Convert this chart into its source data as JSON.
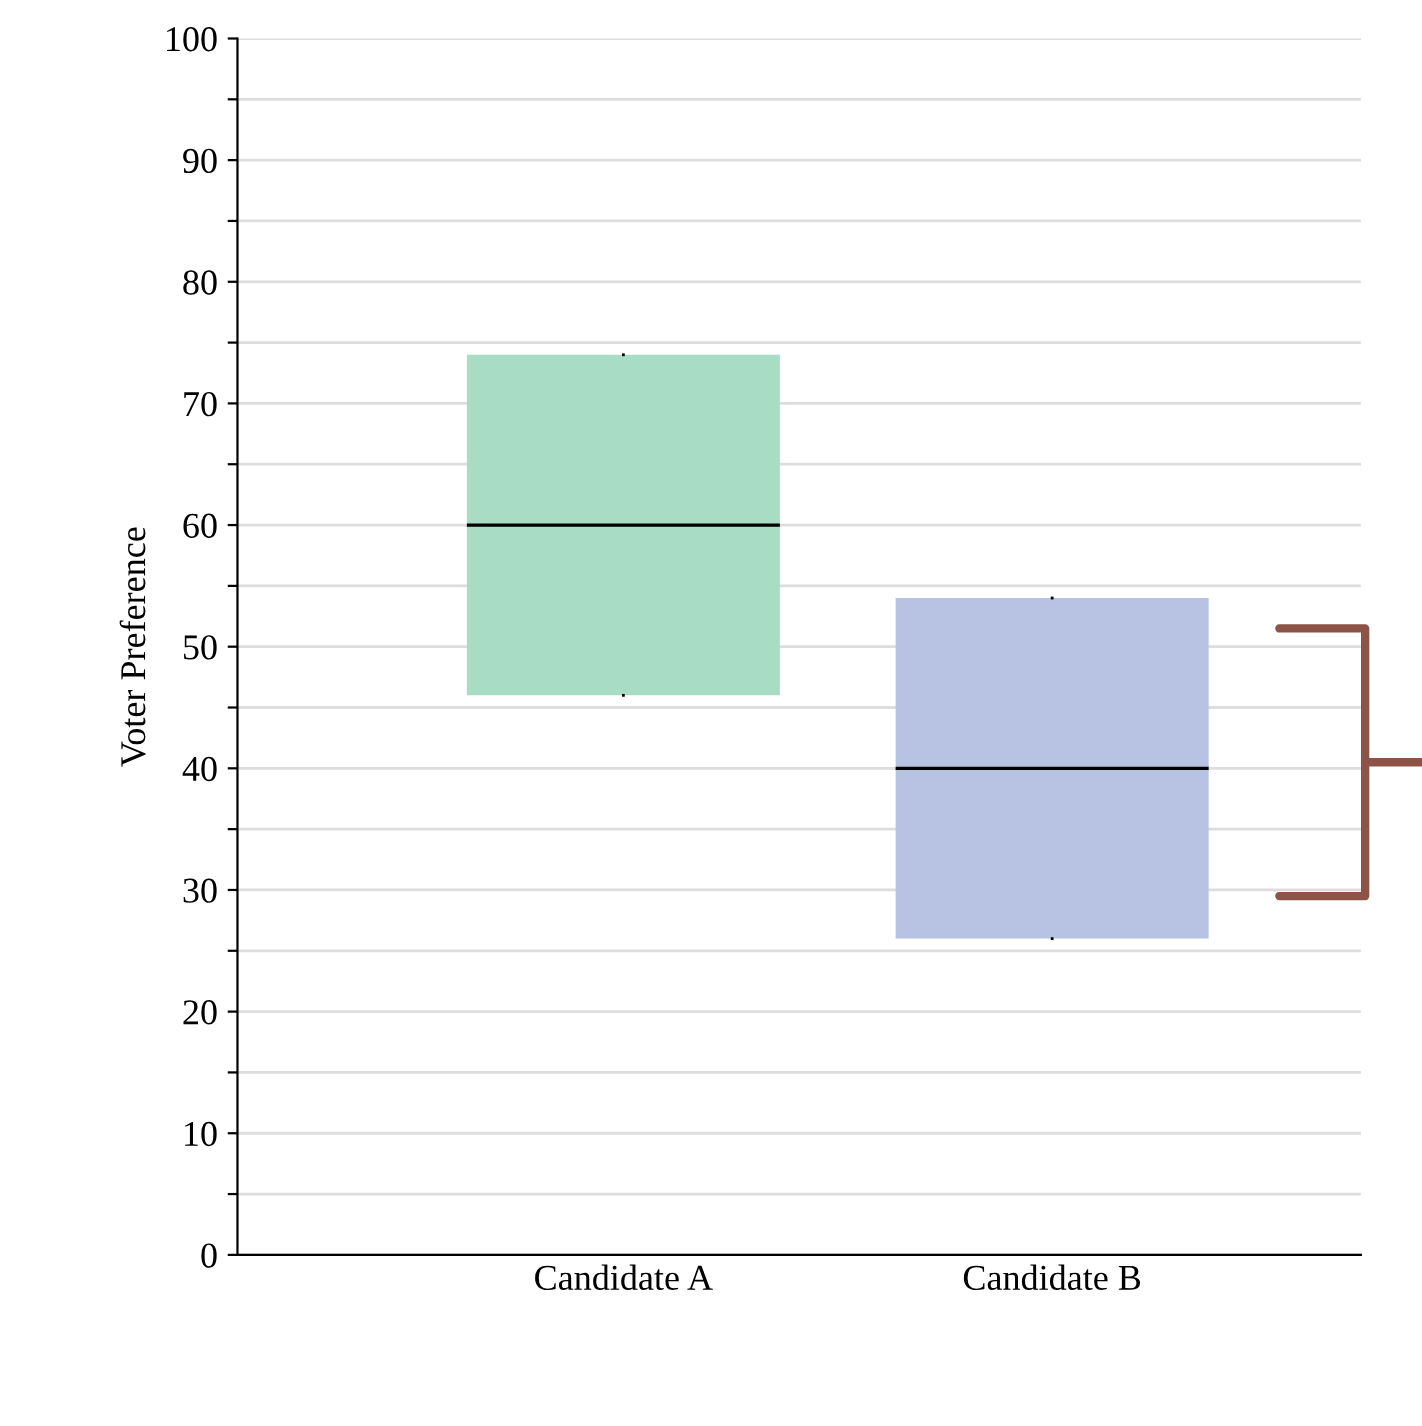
{
  "chart_data": {
    "type": "box",
    "ylabel": "Voter Preference",
    "categories": [
      "Candidate A",
      "Candidate B"
    ],
    "colors": [
      "#a8dcc4",
      "#b8c2e2"
    ],
    "boxes": [
      {
        "low": 46,
        "q1": 46,
        "median": 60,
        "q3": 74,
        "high": 74
      },
      {
        "low": 26,
        "q1": 26,
        "median": 40,
        "q3": 54,
        "high": 54
      }
    ],
    "ylim": [
      0,
      100
    ],
    "yticks": [
      0,
      {
        "value": 5,
        "label": null
      },
      10,
      {
        "value": 15,
        "label": null
      },
      20,
      {
        "value": 25,
        "label": null
      },
      30,
      {
        "value": 35,
        "label": null
      },
      40,
      {
        "value": 45,
        "label": null
      },
      50,
      {
        "value": 55,
        "label": null
      },
      60,
      {
        "value": 65,
        "label": null
      },
      70,
      {
        "value": 75,
        "label": null
      },
      80,
      {
        "value": 85,
        "label": null
      },
      90,
      {
        "value": 95,
        "label": null
      },
      100
    ],
    "grid": "y"
  }
}
